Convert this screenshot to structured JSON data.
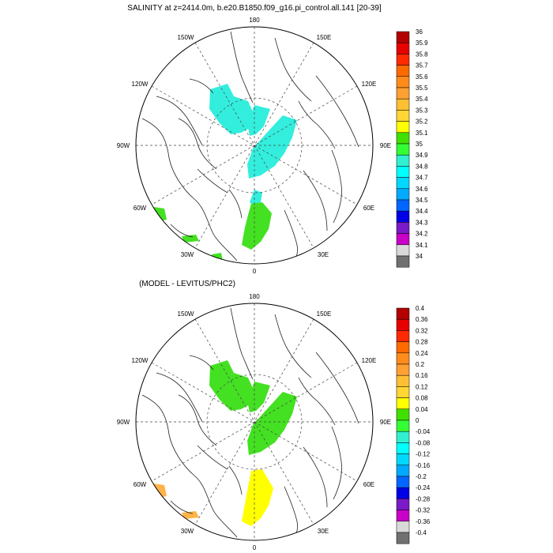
{
  "top_panel": {
    "title": "SALINITY at z=2414.0m, b.e20.B1850.f09_g16.pi_control.all.141 [20-39]",
    "lon_labels": {
      "n180": "180",
      "w150": "150W",
      "e150": "150E",
      "w120": "120W",
      "e120": "120E",
      "w90": "90W",
      "e90": "90E",
      "w60": "60W",
      "e60": "60E",
      "w30": "30W",
      "e30": "30E",
      "n0": "0"
    },
    "colorbar": {
      "labels": [
        "36",
        "35.9",
        "35.8",
        "35.7",
        "35.6",
        "35.5",
        "35.4",
        "35.3",
        "35.2",
        "35.1",
        "35",
        "34.9",
        "34.8",
        "34.7",
        "34.6",
        "34.5",
        "34.4",
        "34.3",
        "34.2",
        "34.1",
        "34"
      ]
    }
  },
  "bottom_panel": {
    "title": "(MODEL - LEVITUS/PHC2)",
    "lon_labels": {
      "n180": "180",
      "w150": "150W",
      "e150": "150E",
      "w120": "120W",
      "e120": "120E",
      "w90": "90W",
      "e90": "90E",
      "w60": "60W",
      "e60": "60E",
      "w30": "30W",
      "e30": "30E",
      "n0": "0"
    },
    "colorbar": {
      "labels": [
        "0.4",
        "0.36",
        "0.32",
        "0.28",
        "0.24",
        "0.2",
        "0.16",
        "0.12",
        "0.08",
        "0.04",
        "0",
        "-0.04",
        "-0.08",
        "-0.12",
        "-0.16",
        "-0.2",
        "-0.24",
        "-0.28",
        "-0.32",
        "-0.36",
        "-0.4"
      ]
    }
  },
  "palette": [
    "#b30000",
    "#e60000",
    "#ff2a00",
    "#ff6a00",
    "#ff8c1a",
    "#ffa033",
    "#ffbf33",
    "#ffd633",
    "#ffff00",
    "#40e000",
    "#33ff33",
    "#30f0d0",
    "#00ffff",
    "#00d8ff",
    "#00aaff",
    "#0066ff",
    "#0000e6",
    "#7a1ac8",
    "#c800c8",
    "#d9d9d9",
    "#707070"
  ],
  "fill_colors": {
    "top_cyan": "#33eedd",
    "top_green": "#44e022",
    "bottom_green": "#44e022",
    "bottom_yellow": "#ffff00",
    "bottom_orange": "#ffb347"
  }
}
